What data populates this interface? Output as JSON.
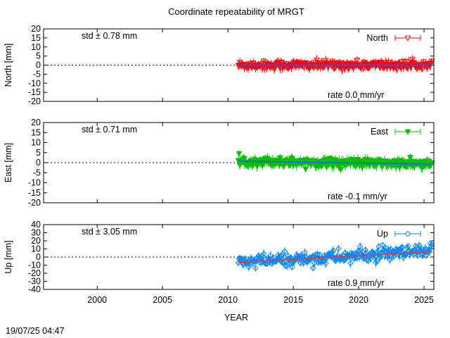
{
  "title": "Coordinate repeatability of MRGT",
  "xlabel": "YEAR",
  "timestamp": "19/07/25 04:47",
  "xlim": [
    1995.9,
    2025.75
  ],
  "x_ticks": [
    2000,
    2005,
    2010,
    2015,
    2020,
    2025
  ],
  "x_tick_labels": [
    "2000",
    "2005",
    "2010",
    "2015",
    "2020",
    "2025"
  ],
  "chart_data": [
    {
      "type": "scatter",
      "panel": "north",
      "ylabel": "North [mm]",
      "ylim": [
        -20,
        20
      ],
      "y_ticks": [
        20,
        15,
        10,
        5,
        0,
        -5,
        -10,
        -15,
        -20
      ],
      "y_tick_labels": [
        "20",
        "15",
        "10",
        "5",
        "0",
        "-5",
        "-10",
        "-15",
        "-20"
      ],
      "series": [
        {
          "name": "North",
          "color": "#ff0000",
          "marker": "triangle-down-open",
          "x_start": 2010.8,
          "x_end": 2025.6,
          "std_mm": 0.78,
          "rate_mm_yr": 0.0
        }
      ],
      "std_text": "std ± 0.78 mm",
      "rate_text": "rate  0.0 mm/yr",
      "trend_color": "#3355ff",
      "legend_position": "top-right"
    },
    {
      "type": "scatter",
      "panel": "east",
      "ylabel": "East [mm]",
      "ylim": [
        -20,
        20
      ],
      "y_ticks": [
        20,
        15,
        10,
        5,
        0,
        -5,
        -10,
        -15,
        -20
      ],
      "y_tick_labels": [
        "20",
        "15",
        "10",
        "5",
        "0",
        "-5",
        "-10",
        "-15",
        "-20"
      ],
      "series": [
        {
          "name": "East",
          "color": "#00c000",
          "marker": "triangle-down-filled",
          "x_start": 2010.8,
          "x_end": 2025.6,
          "std_mm": 0.71,
          "rate_mm_yr": -0.1
        }
      ],
      "std_text": "std ± 0.71 mm",
      "rate_text": "rate -0.1 mm/yr",
      "trend_color": "#3355ff",
      "legend_position": "top-right"
    },
    {
      "type": "scatter",
      "panel": "up",
      "ylabel": "Up [mm]",
      "ylim": [
        -40,
        40
      ],
      "y_ticks": [
        40,
        30,
        20,
        10,
        0,
        -10,
        -20,
        -30,
        -40
      ],
      "y_tick_labels": [
        "40",
        "30",
        "20",
        "10",
        "0",
        "-10",
        "-20",
        "-30",
        "-40"
      ],
      "series": [
        {
          "name": "Up",
          "color": "#0088ff",
          "marker": "diamond-open",
          "x_start": 2010.8,
          "x_end": 2025.6,
          "std_mm": 3.05,
          "rate_mm_yr": 0.9
        }
      ],
      "std_text": "std ± 3.05 mm",
      "rate_text": "rate  0.9 mm/yr",
      "trend_color": "#ff3030",
      "legend_position": "top-right"
    }
  ]
}
